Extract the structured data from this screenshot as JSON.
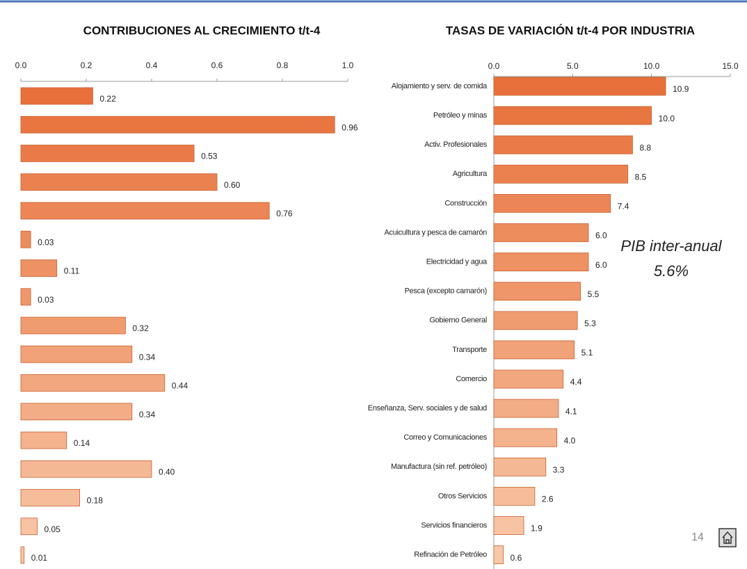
{
  "page_number": "14",
  "chart_data": [
    {
      "type": "hbar",
      "title": "CONTRIBUCIONES AL CRECIMIENTO t/t-4",
      "categories": [
        null,
        null,
        null,
        null,
        null,
        null,
        null,
        null,
        null,
        null,
        null,
        null,
        null,
        null,
        null,
        null,
        null
      ],
      "values": [
        0.22,
        0.96,
        0.53,
        0.6,
        0.76,
        0.03,
        0.11,
        0.03,
        0.32,
        0.34,
        0.44,
        0.34,
        0.14,
        0.4,
        0.18,
        0.05,
        0.01
      ],
      "value_labels": [
        "0.22",
        "0.96",
        "0.53",
        "0.60",
        "0.76",
        "0.03",
        "0.11",
        "0.03",
        "0.32",
        "0.34",
        "0.44",
        "0.34",
        "0.14",
        "0.40",
        "0.18",
        "0.05",
        "0.01"
      ],
      "colors": [
        "#e8703a",
        "#e97641",
        "#ea7b48",
        "#eb814f",
        "#ec8656",
        "#ed8c5d",
        "#ee9163",
        "#ef976a",
        "#f09c71",
        "#f1a278",
        "#f2a77f",
        "#f3ad86",
        "#f4b28d",
        "#f5b894",
        "#f6bd9b",
        "#f7c3a2",
        "#f8c8a8"
      ],
      "xlim": [
        0,
        1
      ],
      "xticks": [
        {
          "value": 0,
          "label": "0.0"
        },
        0.2,
        0.4,
        0.6,
        0.8,
        {
          "value": 1,
          "label": "1.0"
        }
      ]
    },
    {
      "type": "hbar",
      "title": "TASAS DE VARIACIÓN t/t-4 POR INDUSTRIA",
      "categories": [
        "Alojamiento y serv. de comida",
        "Petróleo y minas",
        "Activ. Profesionales",
        "Agricultura",
        "Construcción",
        "Acuicultura y pesca de camarón",
        "Electricidad y agua",
        "Pesca (excepto camarón)",
        "Gobierno General",
        "Transporte",
        "Comercio",
        "Enseñanza, Serv. sociales y de salud",
        "Correo y Comunicaciones",
        "Manufactura (sin ref. petróleo)",
        "Otros Servicios",
        "Servicios financieros",
        "Refinación de Petróleo"
      ],
      "values": [
        10.9,
        10.0,
        8.8,
        8.5,
        7.4,
        6.0,
        6.0,
        5.5,
        5.3,
        5.1,
        4.4,
        4.1,
        4.0,
        3.3,
        2.6,
        1.9,
        0.6
      ],
      "value_labels": [
        "10.9",
        "10.0",
        "8.8",
        "8.5",
        "7.4",
        "6.0",
        "6.0",
        "5.5",
        "5.3",
        "5.1",
        "4.4",
        "4.1",
        "4.0",
        "3.3",
        "2.6",
        "1.9",
        "0.6"
      ],
      "colors": [
        "#e8703a",
        "#e97641",
        "#ea7b48",
        "#eb814f",
        "#ec8656",
        "#ed8c5d",
        "#ee9163",
        "#ef976a",
        "#f09c71",
        "#f1a278",
        "#f2a77f",
        "#f3ad86",
        "#f4b28d",
        "#f5b894",
        "#f6bd9b",
        "#f7c3a2",
        "#f8c8a8"
      ],
      "xlim": [
        0,
        15
      ],
      "xticks": [
        {
          "value": 0,
          "label": "0.0"
        },
        {
          "value": 5,
          "label": "5.0"
        },
        {
          "value": 10,
          "label": "10.0"
        },
        {
          "value": 15,
          "label": "15.0"
        }
      ],
      "annotations": [
        "PIB inter-anual",
        "5.6%"
      ]
    }
  ]
}
